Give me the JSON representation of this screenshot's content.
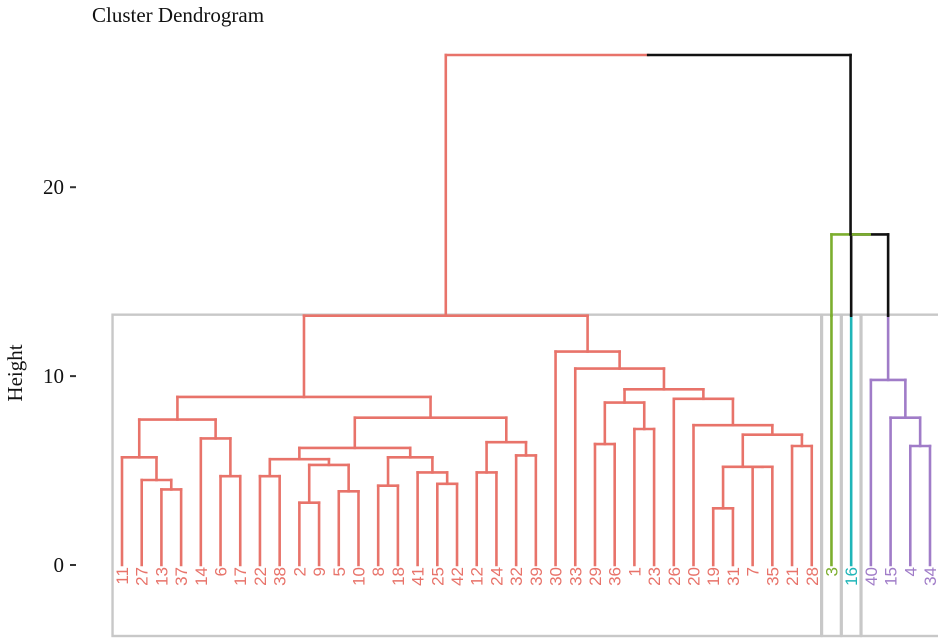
{
  "chart_data": {
    "type": "dendrogram",
    "title": "Cluster Dendrogram",
    "ylabel": "Height",
    "xlabel": "",
    "ylim": [
      0,
      27
    ],
    "yticks": [
      0,
      10,
      20
    ],
    "ytick_labels": [
      "0",
      "10",
      "20"
    ],
    "leaf_order": [
      "11",
      "27",
      "13",
      "37",
      "14",
      "6",
      "17",
      "22",
      "38",
      "2",
      "9",
      "5",
      "10",
      "8",
      "18",
      "41",
      "25",
      "42",
      "12",
      "24",
      "32",
      "39",
      "30",
      "33",
      "29",
      "36",
      "1",
      "23",
      "26",
      "20",
      "19",
      "31",
      "7",
      "35",
      "21",
      "28",
      "3",
      "16",
      "40",
      "15",
      "4",
      "34"
    ],
    "clusters": [
      {
        "id": 1,
        "color": "#e8736a",
        "leaves": [
          "11",
          "27",
          "13",
          "37",
          "14",
          "6",
          "17",
          "22",
          "38",
          "2",
          "9",
          "5",
          "10",
          "8",
          "18",
          "41",
          "25",
          "42",
          "12",
          "24",
          "32",
          "39",
          "30",
          "33",
          "29",
          "36",
          "1",
          "23",
          "26",
          "20",
          "19",
          "31",
          "7",
          "35",
          "21",
          "28"
        ]
      },
      {
        "id": 2,
        "color": "#7cae2e",
        "leaves": [
          "3"
        ]
      },
      {
        "id": 3,
        "color": "#1fb5b8",
        "leaves": [
          "16"
        ]
      },
      {
        "id": 4,
        "color": "#a07cc8",
        "leaves": [
          "40",
          "15",
          "4",
          "34"
        ]
      }
    ],
    "merges": [
      {
        "a": "11",
        "b": "27",
        "h": 0
      },
      {
        "a": "13",
        "b": "37",
        "h": 4.0
      },
      {
        "a": "27+",
        "b": "13+",
        "h": 4.5
      },
      {
        "a": "11",
        "b": "27-37",
        "h": 5.7
      },
      {
        "a": "14",
        "b": "6-17",
        "h": 6.7
      },
      {
        "a": "6",
        "b": "17",
        "h": 4.7
      },
      {
        "a": "11-37",
        "b": "14-17",
        "h": 7.7
      },
      {
        "a": "22",
        "b": "38",
        "h": 4.7
      },
      {
        "a": "2",
        "b": "9",
        "h": 3.3
      },
      {
        "a": "5",
        "b": "10",
        "h": 3.9
      },
      {
        "a": "2-9",
        "b": "5-10",
        "h": 5.3
      },
      {
        "a": "22-38",
        "b": "2-10",
        "h": 5.6
      },
      {
        "a": "8",
        "b": "18",
        "h": 4.2
      },
      {
        "a": "25",
        "b": "42",
        "h": 4.3
      },
      {
        "a": "41",
        "b": "25-42",
        "h": 4.9
      },
      {
        "a": "8-18",
        "b": "41-42",
        "h": 5.7
      },
      {
        "a": "22-10",
        "b": "8-42",
        "h": 6.2
      },
      {
        "a": "12",
        "b": "24",
        "h": 4.9
      },
      {
        "a": "32",
        "b": "39",
        "h": 5.8
      },
      {
        "a": "12-24",
        "b": "32-39",
        "h": 6.5
      },
      {
        "a": "22-42",
        "b": "12-39",
        "h": 7.8
      },
      {
        "a": "11-17",
        "b": "22-39",
        "h": 8.9
      },
      {
        "a": "29",
        "b": "36",
        "h": 6.4
      },
      {
        "a": "1",
        "b": "23",
        "h": 7.2
      },
      {
        "a": "29-36",
        "b": "1-23",
        "h": 8.6
      },
      {
        "a": "19",
        "b": "31",
        "h": 3.0
      },
      {
        "a": "7",
        "b": "35",
        "h": 5.2
      },
      {
        "a": "19-31",
        "b": "7-35",
        "h": 5.2
      },
      {
        "a": "21",
        "b": "28",
        "h": 6.3
      },
      {
        "a": "19-35",
        "b": "21-28",
        "h": 6.9
      },
      {
        "a": "20",
        "b": "19-28",
        "h": 7.4
      },
      {
        "a": "26",
        "b": "20-28",
        "h": 8.8
      },
      {
        "a": "29-23",
        "b": "26-28",
        "h": 9.3
      },
      {
        "a": "33",
        "b": "29-28",
        "h": 10.4
      },
      {
        "a": "30",
        "b": "33-28",
        "h": 11.3
      },
      {
        "a": "11-39",
        "b": "30-28",
        "h": 13.2
      },
      {
        "a": "4",
        "b": "34",
        "h": 6.3
      },
      {
        "a": "15",
        "b": "4-34",
        "h": 7.8
      },
      {
        "a": "40",
        "b": "15-34",
        "h": 9.8
      },
      {
        "a": "16",
        "b": "40-34",
        "h": 13.2
      },
      {
        "a": "3",
        "b": "16-34",
        "h": 17.5
      },
      {
        "a": "cluster1",
        "b": "3-34",
        "h": 27.0
      }
    ]
  }
}
